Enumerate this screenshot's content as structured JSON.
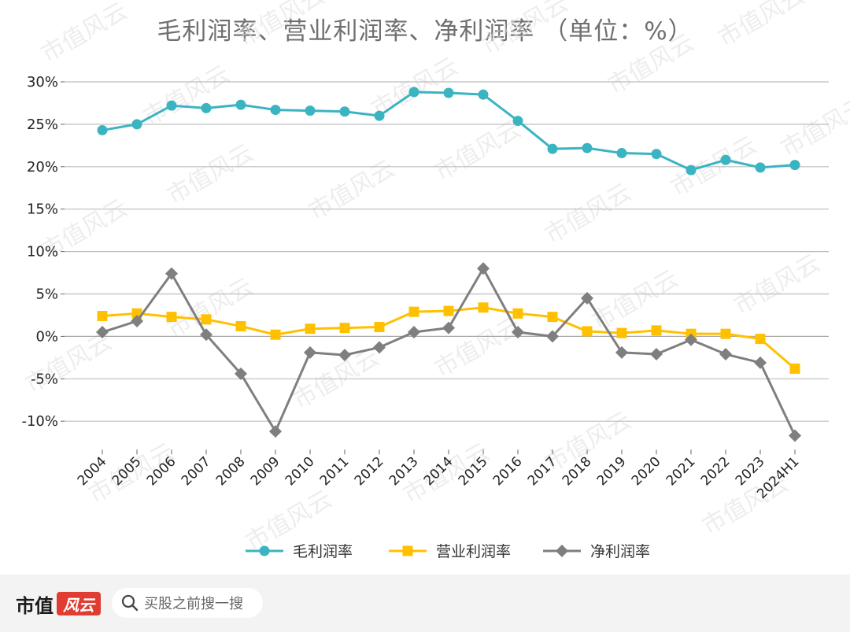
{
  "chart_data": {
    "type": "line",
    "title": "毛利润率、营业利润率、净利润率 （单位：%）",
    "categories": [
      "2004",
      "2005",
      "2006",
      "2007",
      "2008",
      "2009",
      "2010",
      "2011",
      "2012",
      "2013",
      "2014",
      "2015",
      "2016",
      "2017",
      "2018",
      "2019",
      "2020",
      "2021",
      "2022",
      "2023",
      "2024H1"
    ],
    "y_ticks": [
      "30%",
      "25%",
      "20%",
      "15%",
      "10%",
      "5%",
      "0%",
      "-5%",
      "-10%"
    ],
    "ylim": [
      -12.5,
      31
    ],
    "series": [
      {
        "name": "毛利润率",
        "marker": "circle",
        "color": "#3bb4c1",
        "values": [
          24.3,
          25.0,
          27.2,
          26.9,
          27.3,
          26.7,
          26.6,
          26.5,
          26.0,
          28.8,
          28.7,
          28.5,
          25.4,
          22.1,
          22.2,
          21.6,
          21.5,
          19.6,
          20.8,
          19.9,
          20.2
        ]
      },
      {
        "name": "营业利润率",
        "marker": "square",
        "color": "#ffc000",
        "values": [
          2.4,
          2.7,
          2.3,
          2.0,
          1.2,
          0.2,
          0.9,
          1.0,
          1.1,
          2.9,
          3.0,
          3.4,
          2.7,
          2.3,
          0.6,
          0.4,
          0.7,
          0.3,
          0.3,
          -0.3,
          -3.8
        ]
      },
      {
        "name": "净利润率",
        "marker": "diamond",
        "color": "#7f7f7f",
        "values": [
          0.5,
          1.8,
          7.4,
          0.2,
          -4.4,
          -11.2,
          -1.9,
          -2.2,
          -1.3,
          0.5,
          1.0,
          8.0,
          0.5,
          0.0,
          4.5,
          -1.9,
          -2.1,
          -0.4,
          -2.1,
          -3.1,
          -11.7
        ]
      }
    ],
    "negative_tick_color": "#e02020",
    "grid": true,
    "legend": "bottom"
  },
  "watermark": "市值风云",
  "footer": {
    "brand_text": "市值",
    "brand_badge": "风云",
    "search_placeholder": "买股之前搜一搜"
  }
}
